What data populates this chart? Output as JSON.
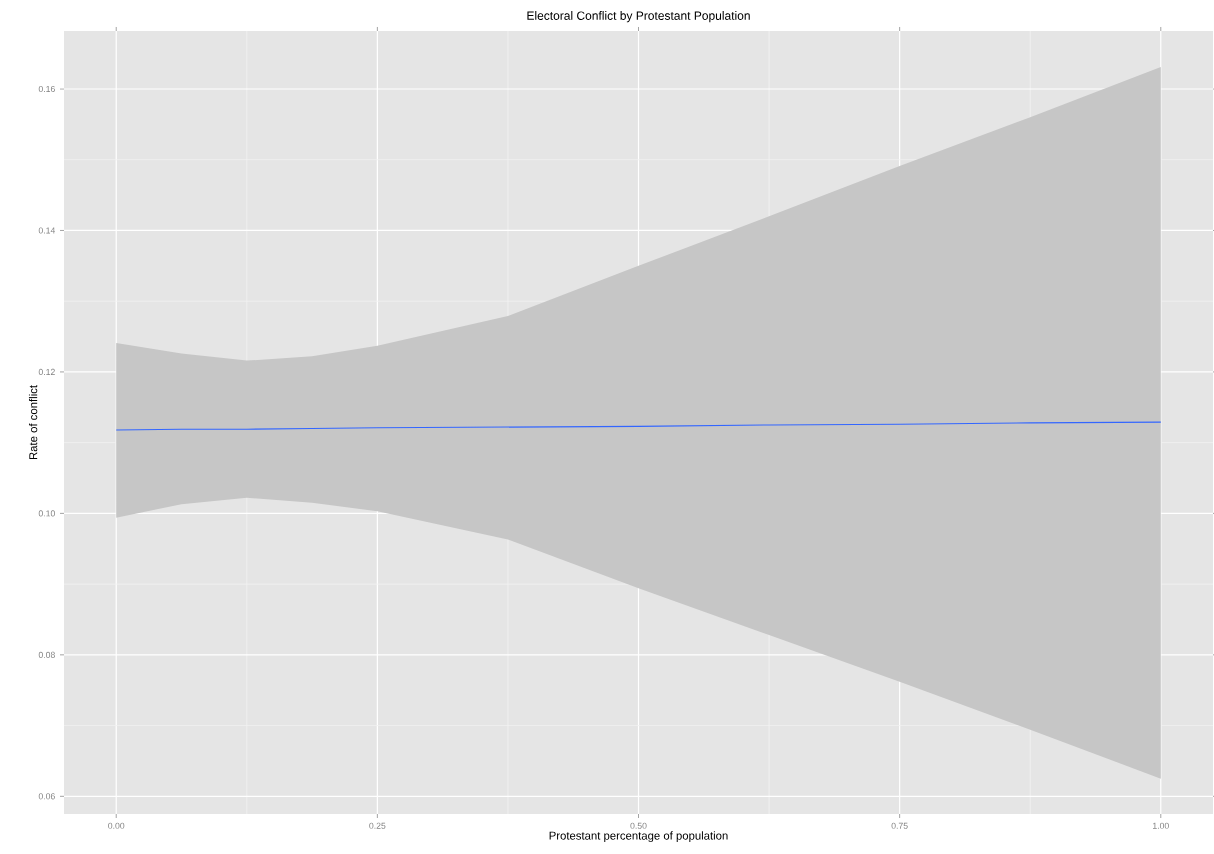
{
  "chart_data": {
    "type": "line",
    "title": "Electoral Conflict by Protestant Population",
    "xlabel": "Protestant percentage of population",
    "ylabel": "Rate of conflict",
    "series": [
      {
        "color": "#3366ff",
        "x": [
          0,
          0.0625,
          0.125,
          0.1875,
          0.25,
          0.375,
          0.5,
          0.625,
          0.75,
          0.875,
          1.0
        ],
        "values": [
          0.1118,
          0.1119,
          0.1119,
          0.112,
          0.1121,
          0.1122,
          0.1123,
          0.1125,
          0.1126,
          0.1128,
          0.1129
        ],
        "upper": [
          0.1241,
          0.1226,
          0.1216,
          0.1222,
          0.1237,
          0.1279,
          0.135,
          0.142,
          0.1491,
          0.156,
          0.1631
        ],
        "lower": [
          0.0994,
          0.1013,
          0.1022,
          0.1015,
          0.1003,
          0.0963,
          0.0894,
          0.0828,
          0.0762,
          0.0694,
          0.0625
        ]
      }
    ],
    "xlim": [
      -0.05,
      1.05
    ],
    "ylim": [
      0.0575,
      0.1682
    ],
    "xticks": [
      {
        "value": 0,
        "label": "0.00"
      },
      {
        "value": 0.25,
        "label": "0.25"
      },
      {
        "value": 0.5,
        "label": "0.50"
      },
      {
        "value": 0.75,
        "label": "0.75"
      },
      {
        "value": 1,
        "label": "1.00"
      }
    ],
    "yticks": [
      {
        "value": 0.06,
        "label": "0.06"
      },
      {
        "value": 0.08,
        "label": "0.08"
      },
      {
        "value": 0.1,
        "label": "0.10"
      },
      {
        "value": 0.12,
        "label": "0.12"
      },
      {
        "value": 0.14,
        "label": "0.14"
      },
      {
        "value": 0.16,
        "label": "0.16"
      }
    ],
    "grid": true,
    "marker": "none"
  }
}
